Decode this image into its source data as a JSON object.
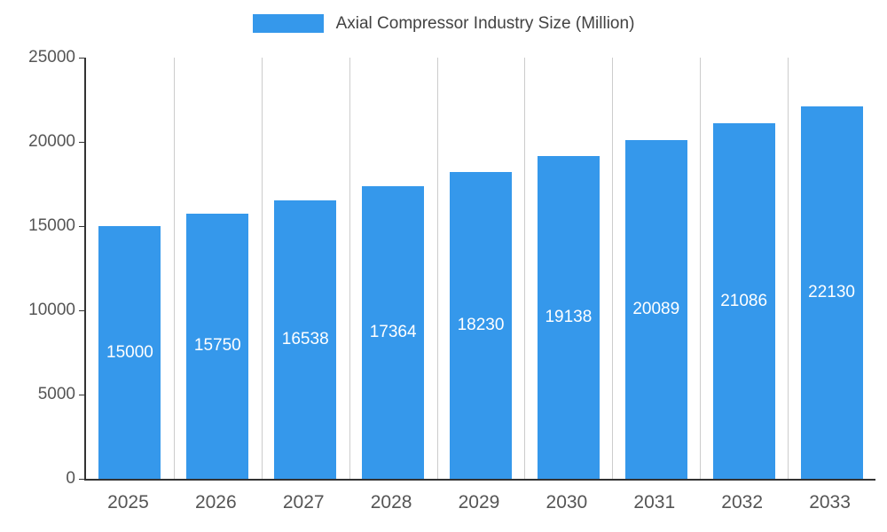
{
  "legend": {
    "label": "Axial Compressor Industry Size (Million)",
    "swatch_color": "#3598EB"
  },
  "chart_data": {
    "type": "bar",
    "title": "Axial Compressor Industry Size (Million)",
    "categories": [
      "2025",
      "2026",
      "2027",
      "2028",
      "2029",
      "2030",
      "2031",
      "2032",
      "2033"
    ],
    "values": [
      15000,
      15750,
      16538,
      17364,
      18230,
      19138,
      20089,
      21086,
      22130
    ],
    "xlabel": "",
    "ylabel": "",
    "ylim": [
      0,
      25000
    ],
    "y_ticks": [
      0,
      5000,
      10000,
      15000,
      20000,
      25000
    ],
    "bar_color": "#3598EB",
    "value_label_color": "#ffffff",
    "value_label_position": "center-inside-bar",
    "axis_color": "#333333",
    "grid_color": "#cccccc",
    "tick_label_color": "#555555",
    "grid": "vertical-category-separators",
    "legend_position": "top-center"
  }
}
